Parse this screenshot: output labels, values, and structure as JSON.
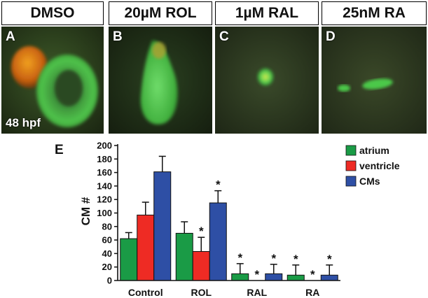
{
  "headers": [
    "DMSO",
    "20µM ROL",
    "1µM RAL",
    "25nM RA"
  ],
  "panels": [
    {
      "label": "A",
      "stage": "48 hpf"
    },
    {
      "label": "B",
      "stage": ""
    },
    {
      "label": "C",
      "stage": ""
    },
    {
      "label": "D",
      "stage": ""
    }
  ],
  "chart_label": "E",
  "chart_data": {
    "type": "bar",
    "categories": [
      "Control",
      "ROL",
      "RAL",
      "RA"
    ],
    "ylabel": "CM #",
    "ylim": [
      0,
      200
    ],
    "yticks": [
      0,
      20,
      40,
      60,
      80,
      100,
      120,
      140,
      160,
      180,
      200
    ],
    "legend_position": "top-right",
    "series": [
      {
        "name": "atrium",
        "color": "#1a9b46",
        "values": [
          62,
          70,
          10,
          8
        ],
        "errors": [
          9,
          17,
          15,
          15
        ],
        "significant": [
          false,
          false,
          true,
          true
        ]
      },
      {
        "name": "ventricle",
        "color": "#ee2b24",
        "values": [
          97,
          43,
          0,
          0
        ],
        "errors": [
          19,
          21,
          0,
          0
        ],
        "significant": [
          false,
          true,
          true,
          true
        ]
      },
      {
        "name": "CMs",
        "color": "#2e4fa5",
        "values": [
          161,
          115,
          10,
          8
        ],
        "errors": [
          23,
          18,
          14,
          15
        ],
        "significant": [
          false,
          true,
          true,
          true
        ]
      }
    ],
    "significance_marker": "*"
  }
}
